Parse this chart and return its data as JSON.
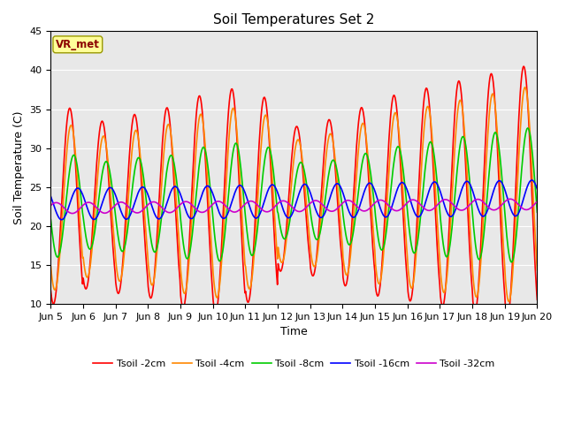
{
  "title": "Soil Temperatures Set 2",
  "xlabel": "Time",
  "ylabel": "Soil Temperature (C)",
  "ylim": [
    10,
    45
  ],
  "yticks": [
    10,
    15,
    20,
    25,
    30,
    35,
    40,
    45
  ],
  "xtick_labels": [
    "Jun 5",
    "Jun 6",
    "Jun 7",
    "Jun 8",
    "Jun 9",
    "Jun 10",
    "Jun 11",
    "Jun 12",
    "Jun 13",
    "Jun 14",
    "Jun 15",
    "Jun 16",
    "Jun 17",
    "Jun 18",
    "Jun 19",
    "Jun 20"
  ],
  "colors": {
    "Tsoil_2cm": "#ff0000",
    "Tsoil_4cm": "#ff8800",
    "Tsoil_8cm": "#00cc00",
    "Tsoil_16cm": "#0000ff",
    "Tsoil_32cm": "#cc00cc"
  },
  "legend_labels": [
    "Tsoil -2cm",
    "Tsoil -4cm",
    "Tsoil -8cm",
    "Tsoil -16cm",
    "Tsoil -32cm"
  ],
  "annotation_text": "VR_met",
  "annotation_color": "#8B0000",
  "annotation_bg": "#ffff99",
  "bg_color": "#e8e8e8",
  "title_fontsize": 11,
  "axis_fontsize": 8,
  "label_fontsize": 9,
  "line_width": 1.2
}
